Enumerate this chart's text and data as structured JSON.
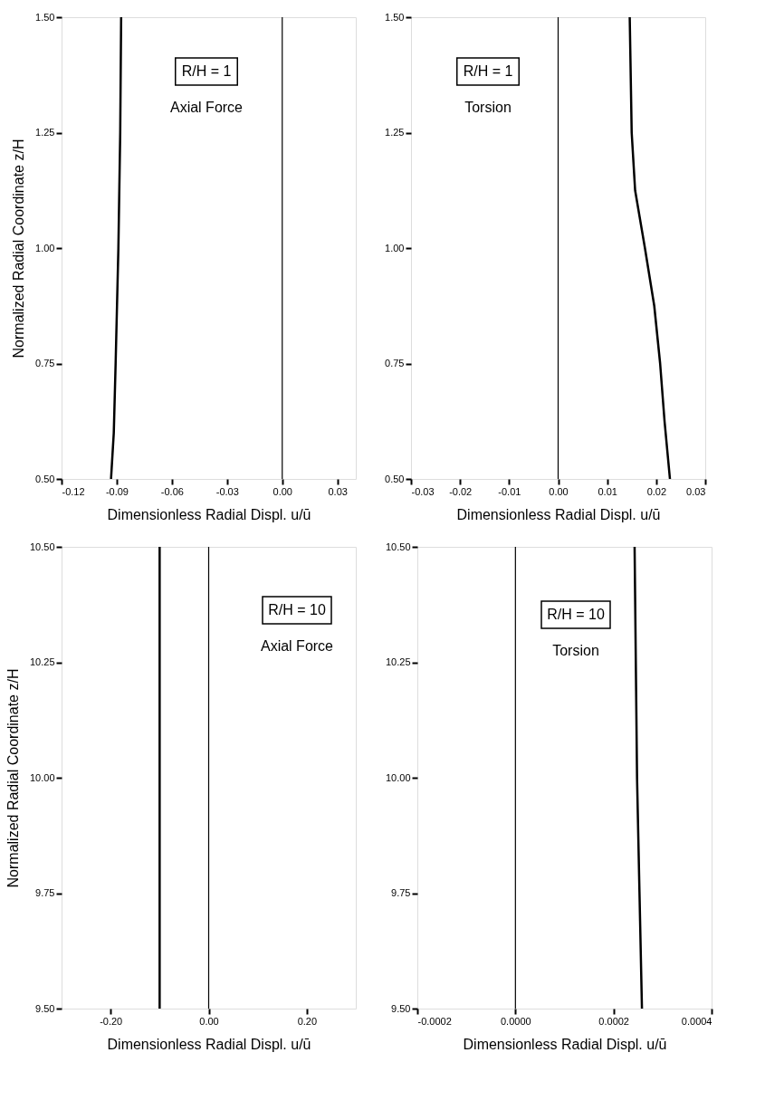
{
  "chart_data": [
    {
      "type": "line",
      "xlabel": "Dimensionless Radial Displ. u/ū",
      "ylabel": "Normalized Radial Coordinate z/H",
      "annotations": [
        "R/H = 1",
        "Axial Force"
      ],
      "xlim": [
        -0.12,
        0.04
      ],
      "xticks": [
        -0.12,
        -0.09,
        -0.06,
        -0.03,
        {
          "value": 0,
          "label": "0.00"
        },
        0.03
      ],
      "ylim": [
        0.5,
        1.5
      ],
      "yticks": [
        {
          "value": 0.5,
          "label": "0.50"
        },
        0.75,
        {
          "value": 1.0,
          "label": "1.00"
        },
        1.25,
        {
          "value": 1.5,
          "label": "1.50"
        }
      ],
      "ref_lines": [
        {
          "axis": "x",
          "value": 0,
          "color": "#000000"
        }
      ],
      "grid": false,
      "series": [
        {
          "color": "#000000",
          "x": [
            -0.0931,
            -0.0916,
            -0.0906,
            -0.0891,
            -0.0881,
            -0.0876
          ],
          "values": [
            0.5,
            0.6,
            0.75,
            1.0,
            1.25,
            1.5
          ]
        }
      ]
    },
    {
      "type": "line",
      "xlabel": "Dimensionless Radial Displ. u/ū",
      "annotations": [
        "R/H = 1",
        "Torsion"
      ],
      "xlim": [
        -0.03,
        0.03
      ],
      "xticks": [
        -0.03,
        -0.02,
        -0.01,
        {
          "value": 0,
          "label": "0.00"
        },
        0.01,
        0.02,
        0.03
      ],
      "ylim": [
        0.5,
        1.5
      ],
      "yticks": [
        {
          "value": 0.5,
          "label": "0.50"
        },
        0.75,
        {
          "value": 1.0,
          "label": "1.00"
        },
        1.25,
        {
          "value": 1.5,
          "label": "1.50"
        }
      ],
      "ref_lines": [
        {
          "axis": "x",
          "value": 0,
          "color": "#000000"
        }
      ],
      "grid": false,
      "series": [
        {
          "color": "#000000",
          "x": [
            0.0228,
            0.0217,
            0.0208,
            0.0196,
            0.0177,
            0.0157,
            0.015,
            0.0146
          ],
          "values": [
            0.5,
            0.625,
            0.75,
            0.875,
            1.0,
            1.125,
            1.25,
            1.5
          ]
        }
      ]
    },
    {
      "type": "line",
      "xlabel": "Dimensionless Radial Displ. u/ū",
      "ylabel": "Normalized Radial Coordinate z/H",
      "annotations": [
        "R/H = 10",
        "Axial Force"
      ],
      "xlim": [
        -0.3,
        0.3
      ],
      "xticks": [
        {
          "value": -0.2,
          "label": "-0.20"
        },
        {
          "value": 0,
          "label": "0.00"
        },
        {
          "value": 0.2,
          "label": "0.20"
        }
      ],
      "ylim": [
        9.5,
        10.5
      ],
      "yticks": [
        {
          "value": 9.5,
          "label": "9.50"
        },
        9.75,
        {
          "value": 10.0,
          "label": "10.00"
        },
        10.25,
        {
          "value": 10.5,
          "label": "10.50"
        }
      ],
      "ref_lines": [
        {
          "axis": "x",
          "value": 0,
          "color": "#000000"
        }
      ],
      "grid": false,
      "series": [
        {
          "color": "#000000",
          "x": [
            -0.1,
            -0.1
          ],
          "values": [
            9.5,
            10.5
          ]
        }
      ]
    },
    {
      "type": "line",
      "xlabel": "Dimensionless Radial Displ. u/ū",
      "annotations": [
        "R/H = 10",
        "Torsion"
      ],
      "xlim": [
        -0.0002,
        0.0004
      ],
      "xticks": [
        -0.0002,
        {
          "value": 0,
          "label": "0.0000"
        },
        0.0002,
        0.0004
      ],
      "ylim": [
        9.5,
        10.5
      ],
      "yticks": [
        {
          "value": 9.5,
          "label": "9.50"
        },
        9.75,
        {
          "value": 10.0,
          "label": "10.00"
        },
        10.25,
        {
          "value": 10.5,
          "label": "10.50"
        }
      ],
      "ref_lines": [
        {
          "axis": "x",
          "value": 0,
          "color": "#000000"
        }
      ],
      "grid": false,
      "series": [
        {
          "color": "#000000",
          "x": [
            0.000258,
            0.000253,
            0.000248,
            0.000243
          ],
          "values": [
            9.5,
            9.75,
            10.0,
            10.5
          ]
        }
      ]
    }
  ]
}
